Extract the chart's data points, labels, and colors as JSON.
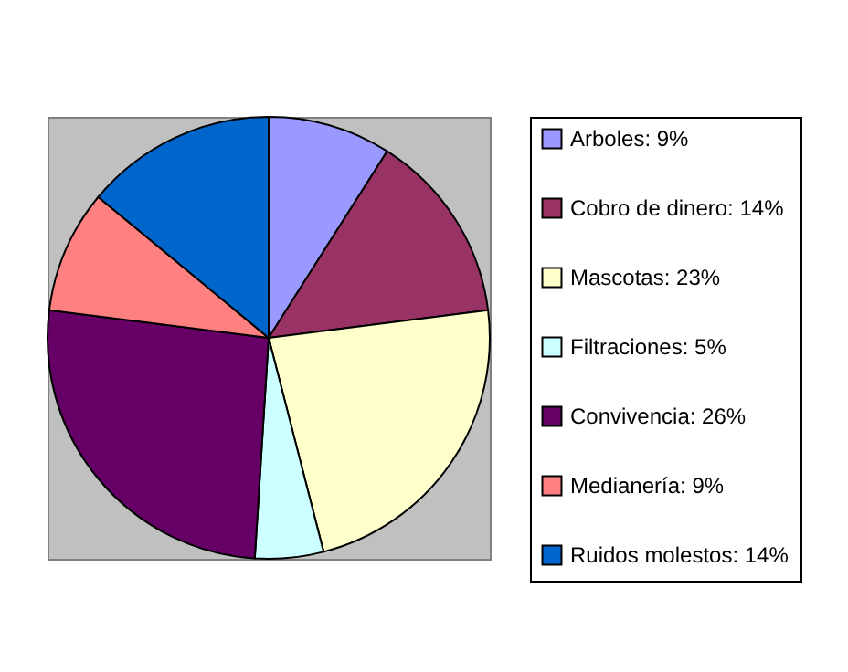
{
  "chart_data": {
    "type": "pie",
    "categories": [
      "Arboles: 9%",
      "Cobro de dinero: 14%",
      "Mascotas: 23%",
      "Filtraciones: 5%",
      "Convivencia: 26%",
      "Medianería: 9%",
      "Ruidos molestos: 14%"
    ],
    "values": [
      9,
      14,
      23,
      5,
      26,
      9,
      14
    ],
    "colors": [
      "#9999ff",
      "#993366",
      "#ffffcc",
      "#ccffff",
      "#660066",
      "#ff8080",
      "#0066cc"
    ],
    "legend": "right"
  }
}
